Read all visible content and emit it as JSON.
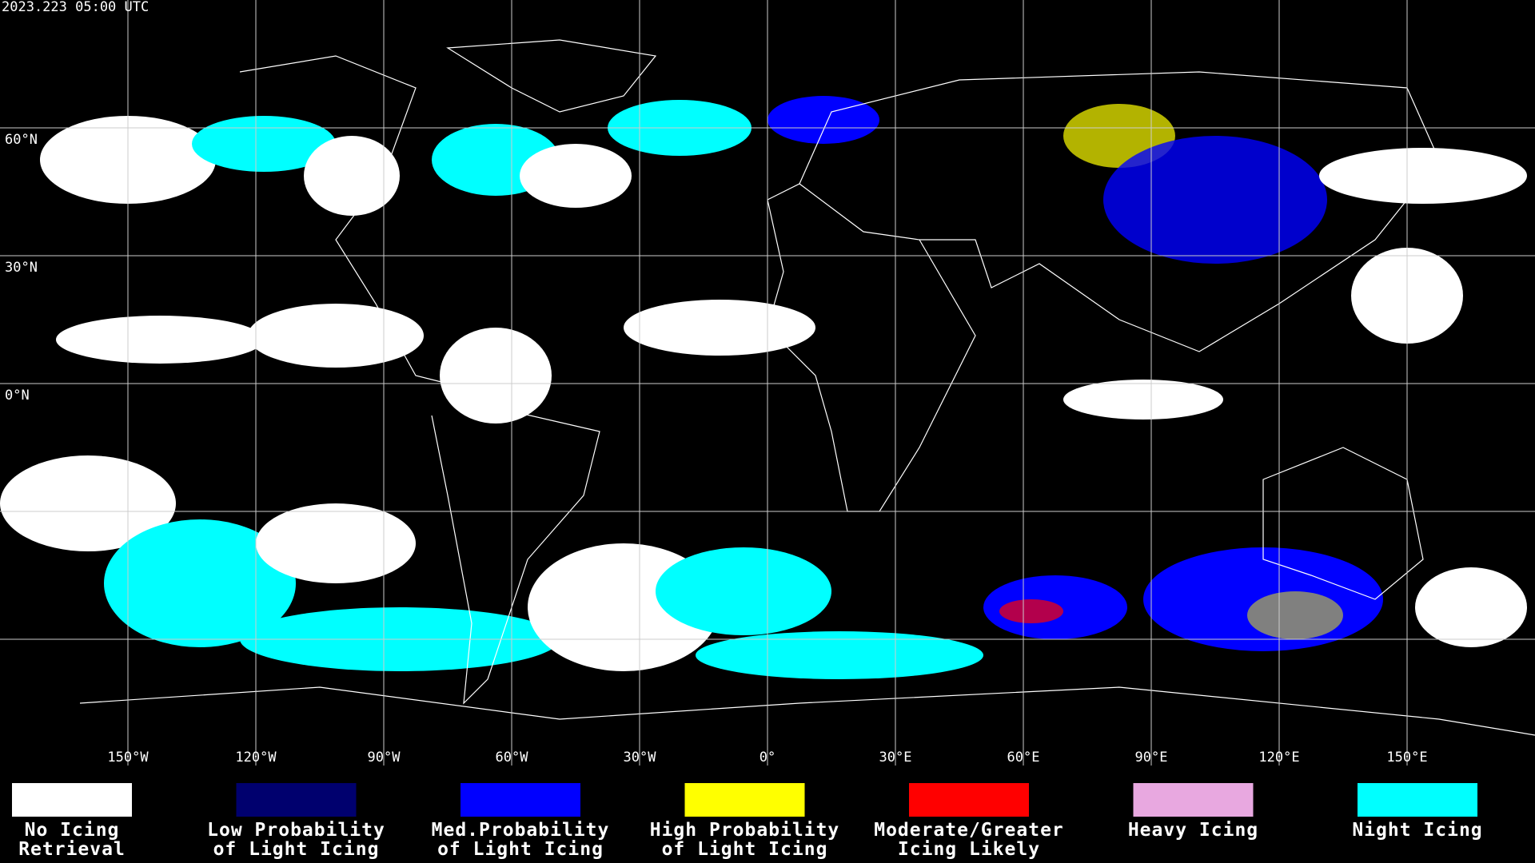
{
  "header": {
    "timestamp": "2023.223 05:00 UTC"
  },
  "map": {
    "lat_labels": [
      "60°N",
      "30°N",
      "0°N"
    ],
    "lon_labels": [
      "150°W",
      "120°W",
      "90°W",
      "60°W",
      "30°W",
      "0°",
      "30°E",
      "60°E",
      "90°E",
      "120°E",
      "150°E"
    ]
  },
  "legend": {
    "items": [
      {
        "color": "#ffffff",
        "label": [
          "No Icing",
          "Retrieval"
        ]
      },
      {
        "color": "#00006e",
        "label": [
          "Low Probability",
          "of Light Icing"
        ]
      },
      {
        "color": "#0000ff",
        "label": [
          "Med.Probability",
          "of Light Icing"
        ]
      },
      {
        "color": "#ffff00",
        "label": [
          "High Probability",
          "of Light Icing"
        ]
      },
      {
        "color": "#ff0000",
        "label": [
          "Moderate/Greater",
          "Icing Likely"
        ]
      },
      {
        "color": "#e8a8e0",
        "label": [
          "Heavy Icing"
        ]
      },
      {
        "color": "#00ffff",
        "label": [
          "Night Icing"
        ]
      }
    ]
  }
}
